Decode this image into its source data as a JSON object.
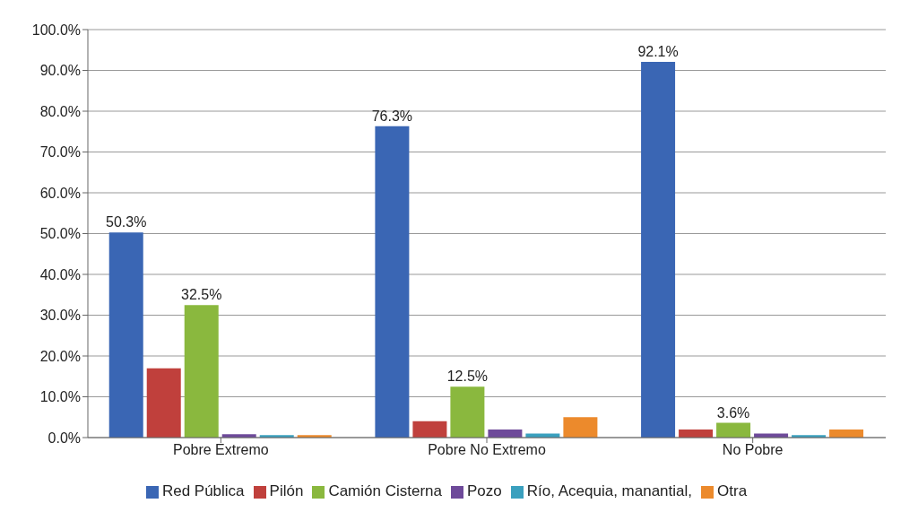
{
  "chart_data": {
    "type": "bar",
    "categories": [
      "Pobre Extremo",
      "Pobre No Extremo",
      "No Pobre"
    ],
    "series": [
      {
        "name": "Red Pública",
        "color": "#3a66b4",
        "values": [
          50.3,
          76.3,
          92.1
        ],
        "value_labels": [
          "50.3%",
          "76.3%",
          "92.1%"
        ]
      },
      {
        "name": "Pilón",
        "color": "#c0403c",
        "values": [
          17,
          4,
          2
        ]
      },
      {
        "name": "Camión Cisterna",
        "color": "#8ab83e",
        "values": [
          32.5,
          12.5,
          3.6
        ],
        "value_labels": [
          "32.5%",
          "12.5%",
          "3.6%"
        ]
      },
      {
        "name": "Pozo",
        "color": "#6e4a9a",
        "values": [
          0.8,
          2,
          1
        ]
      },
      {
        "name": "Río, Acequia, manantial,",
        "color": "#3aa0be",
        "values": [
          0.6,
          1,
          0.6
        ]
      },
      {
        "name": "Otra",
        "color": "#ec8a2c",
        "values": [
          0.6,
          5,
          2
        ]
      }
    ],
    "ylim": [
      0,
      100
    ],
    "yticks": [
      {
        "value": 0,
        "label": "0.0%"
      },
      {
        "value": 10,
        "label": "10.0%"
      },
      {
        "value": 20,
        "label": "20.0%"
      },
      {
        "value": 30,
        "label": "30.0%"
      },
      {
        "value": 40,
        "label": "40.0%"
      },
      {
        "value": 50,
        "label": "50.0%"
      },
      {
        "value": 60,
        "label": "60.0%"
      },
      {
        "value": 70,
        "label": "70.0%"
      },
      {
        "value": 80,
        "label": "80.0%"
      },
      {
        "value": 90,
        "label": "90.0%"
      },
      {
        "value": 100,
        "label": "100.0%"
      }
    ],
    "grid": "y",
    "legend": "bottom"
  }
}
